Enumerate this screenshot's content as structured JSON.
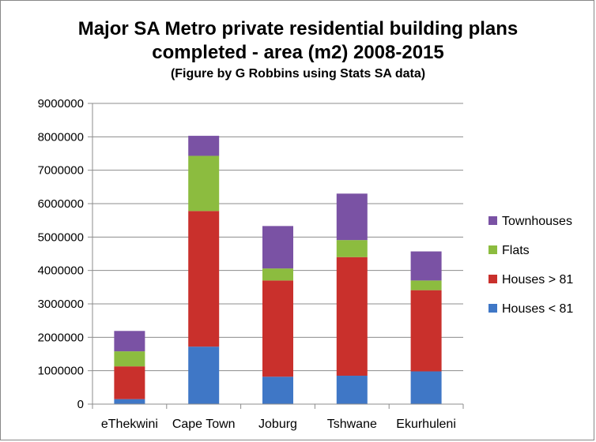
{
  "chart_data": {
    "type": "bar",
    "stacked": true,
    "title_lines": [
      "Major SA Metro private residential building plans",
      "completed - area (m2) 2008-2015"
    ],
    "subtitle": "(Figure by G Robbins using Stats SA data)",
    "xlabel": "",
    "ylabel": "",
    "ylim": [
      0,
      9000000
    ],
    "yticks": [
      "0",
      "1000000",
      "2000000",
      "3000000",
      "4000000",
      "5000000",
      "6000000",
      "7000000",
      "8000000",
      "9000000"
    ],
    "grid": true,
    "legend_position": "right",
    "categories": [
      "eThekwini",
      "Cape Town",
      "Joburg",
      "Tshwane",
      "Ekurhuleni"
    ],
    "series": [
      {
        "name": "Houses < 81",
        "color": "#3f77c6",
        "values": [
          150000,
          1720000,
          820000,
          850000,
          980000
        ]
      },
      {
        "name": "Houses > 81",
        "color": "#c9302c",
        "values": [
          980000,
          4060000,
          2880000,
          3550000,
          2430000
        ]
      },
      {
        "name": "Flats",
        "color": "#8cbc3f",
        "values": [
          450000,
          1650000,
          360000,
          510000,
          290000
        ]
      },
      {
        "name": "Townhouses",
        "color": "#7a52a4",
        "values": [
          610000,
          600000,
          1270000,
          1390000,
          870000
        ]
      }
    ]
  }
}
